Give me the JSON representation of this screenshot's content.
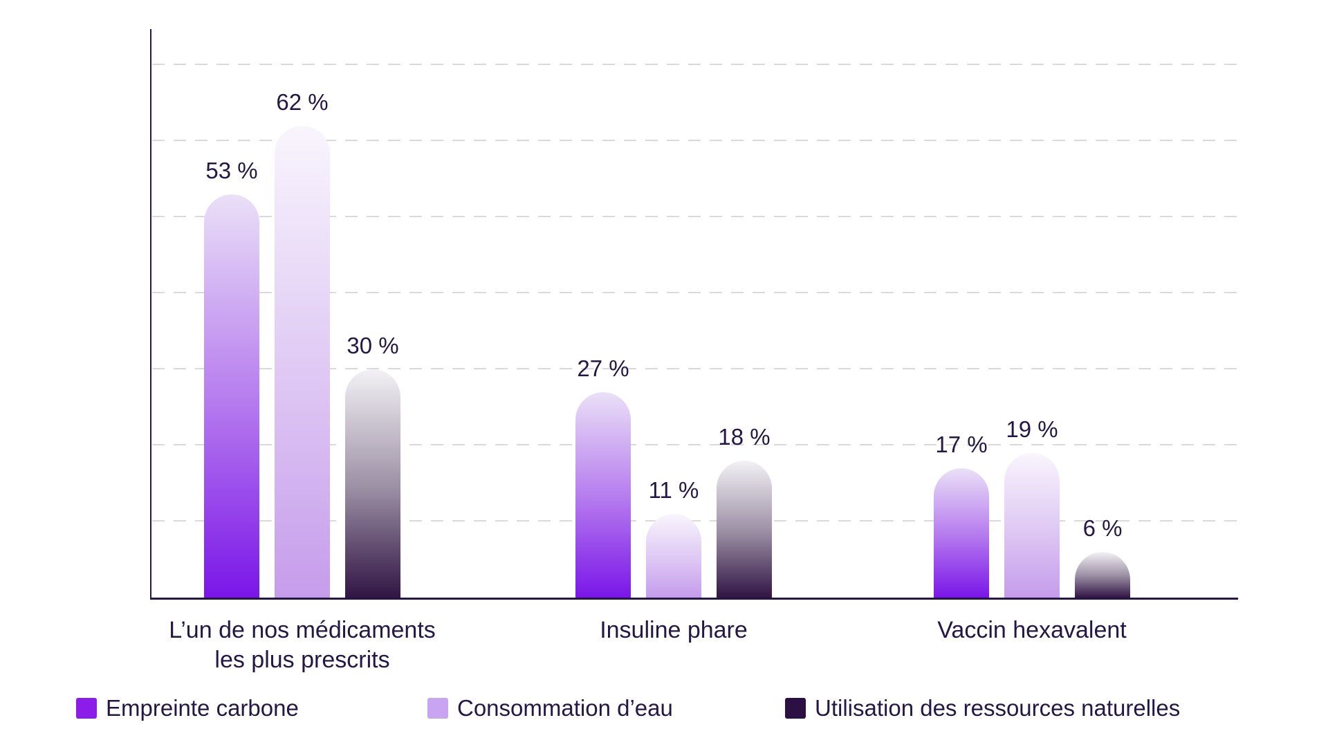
{
  "chart_data": {
    "type": "bar",
    "categories": [
      "L’un de nos médicaments\nles plus prescrits",
      "Insuline phare",
      "Vaccin hexavalent"
    ],
    "series": [
      {
        "name": "Empreinte carbone",
        "values": [
          53,
          27,
          17
        ],
        "color": "#8c1de9",
        "gradient_top": "#eae0f7",
        "gradient_mid": "#b57aee",
        "gradient_bottom": "#7a16e8"
      },
      {
        "name": "Consommation d’eau",
        "values": [
          62,
          11,
          19
        ],
        "color": "#c9a4f0",
        "gradient_top": "#f9f5fd",
        "gradient_mid": "#dfc9f4",
        "gradient_bottom": "#c59ceb"
      },
      {
        "name": "Utilisation des ressources naturelles",
        "values": [
          30,
          18,
          6
        ],
        "color": "#2d1043",
        "gradient_top": "#f3f1f5",
        "gradient_mid": "#9b8fa4",
        "gradient_bottom": "#311544"
      }
    ],
    "value_labels": [
      [
        "53 %",
        "27 %",
        "17 %"
      ],
      [
        "62 %",
        "11 %",
        "19 %"
      ],
      [
        "30 %",
        "18 %",
        "6 %"
      ]
    ],
    "value_suffix": " %",
    "ylim": [
      0,
      74.7
    ],
    "gridlines_percent": [
      10,
      20,
      30,
      40,
      50,
      60,
      70
    ],
    "grid_style": "dashed horizontal",
    "legend_position": "bottom",
    "axis_color": "#241746",
    "grid_color": "#dadada",
    "text_color": "#241746",
    "background_color": "#ffffff"
  }
}
